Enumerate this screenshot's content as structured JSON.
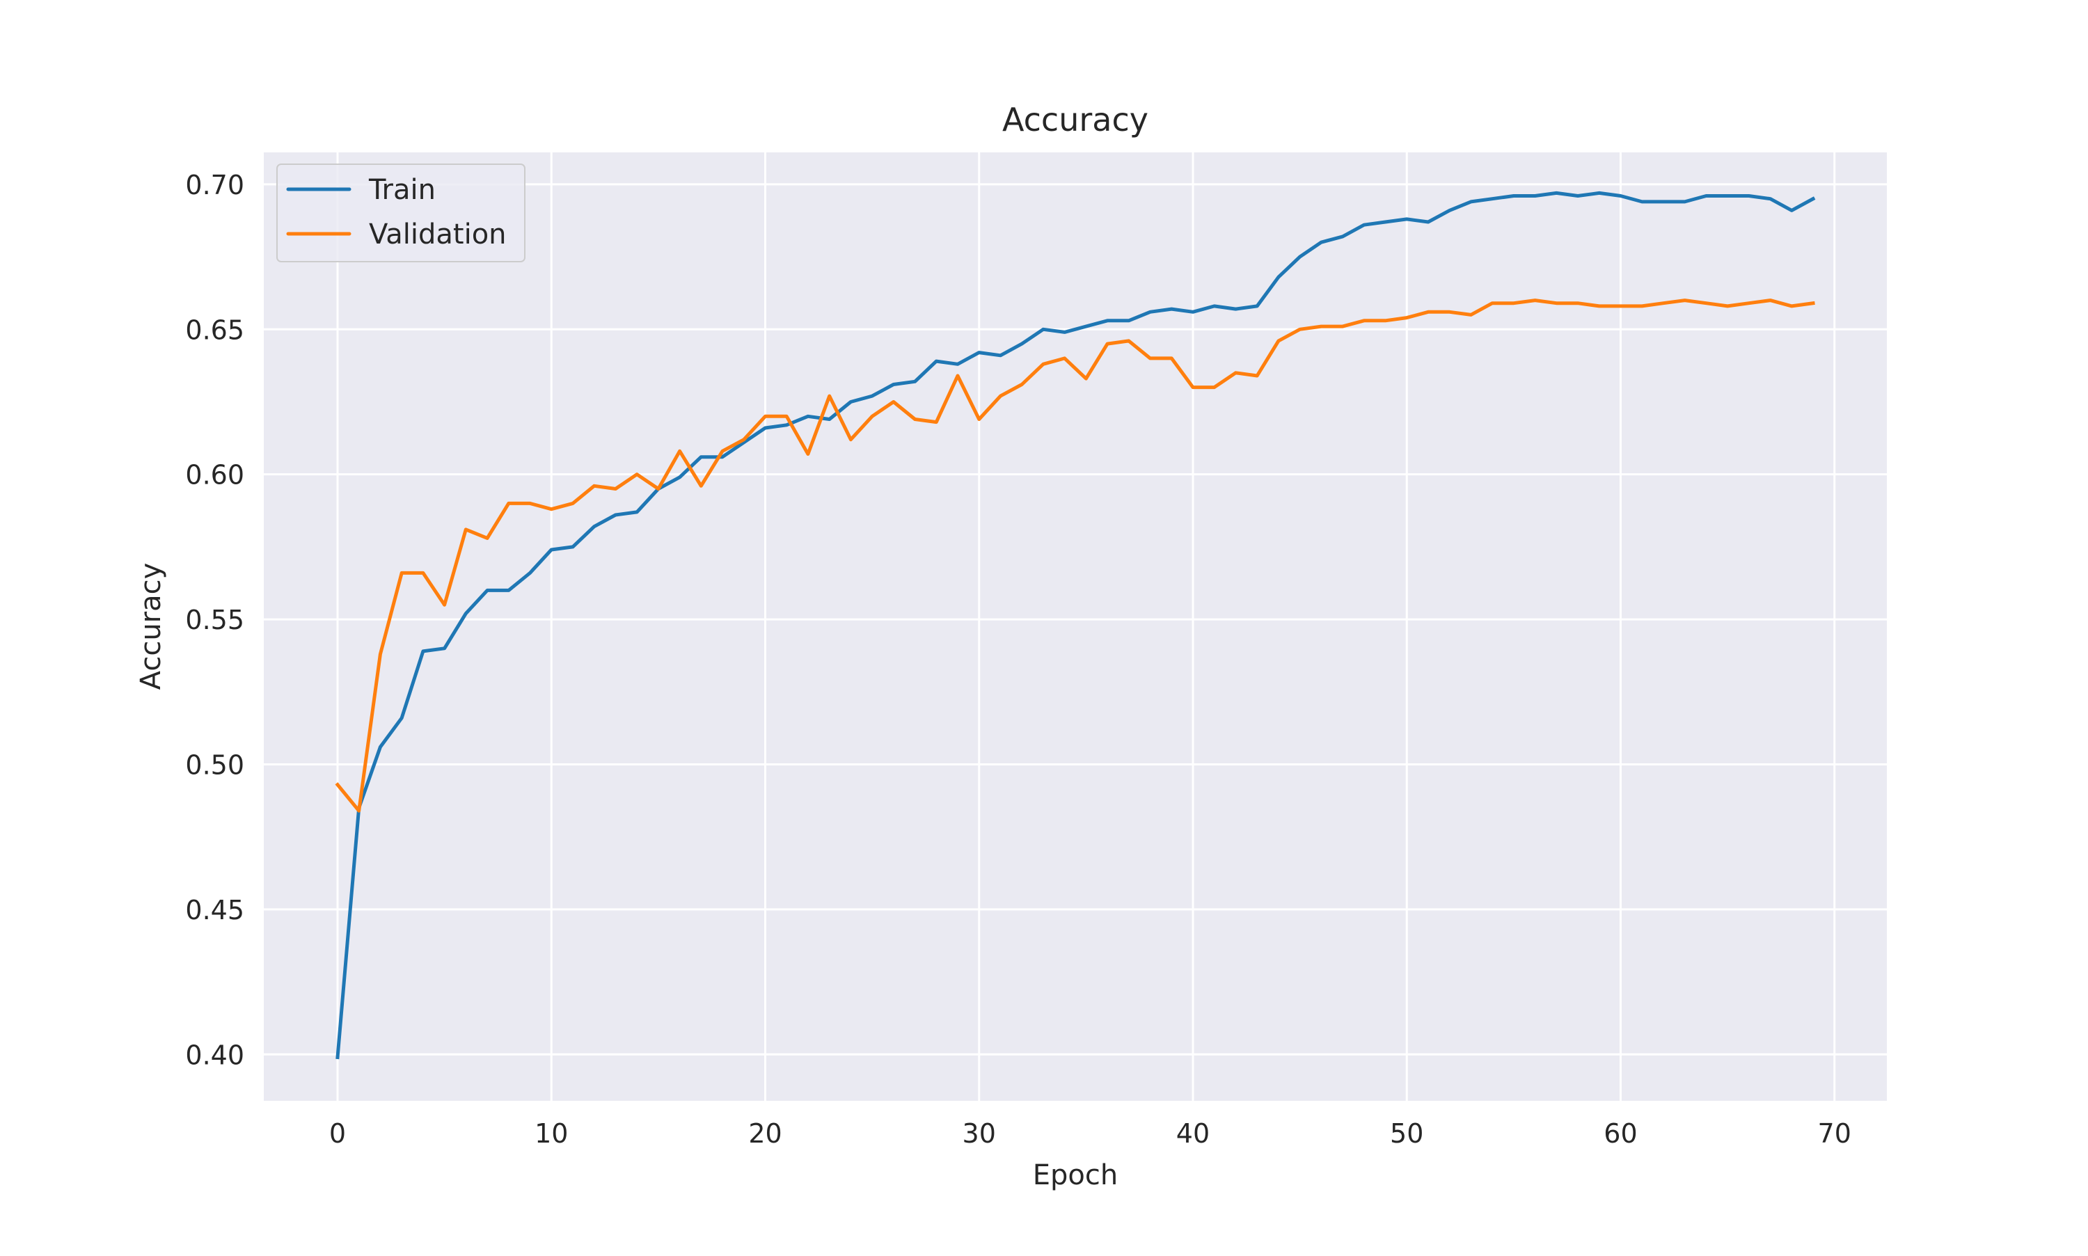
{
  "chart_data": {
    "type": "line",
    "title": "Accuracy",
    "xlabel": "Epoch",
    "ylabel": "Accuracy",
    "xlim": [
      -3.45,
      72.45
    ],
    "ylim": [
      0.384,
      0.711
    ],
    "xticks": [
      0,
      10,
      20,
      30,
      40,
      50,
      60,
      70
    ],
    "yticks": [
      0.4,
      0.45,
      0.5,
      0.55,
      0.6,
      0.65,
      0.7
    ],
    "ytick_labels": [
      "0.40",
      "0.45",
      "0.50",
      "0.55",
      "0.60",
      "0.65",
      "0.70"
    ],
    "grid": true,
    "legend_position": "top-left",
    "background": "#eaeaf2",
    "series": [
      {
        "name": "Train",
        "color": "#1f77b4",
        "x": [
          0,
          1,
          2,
          3,
          4,
          5,
          6,
          7,
          8,
          9,
          10,
          11,
          12,
          13,
          14,
          15,
          16,
          17,
          18,
          19,
          20,
          21,
          22,
          23,
          24,
          25,
          26,
          27,
          28,
          29,
          30,
          31,
          32,
          33,
          34,
          35,
          36,
          37,
          38,
          39,
          40,
          41,
          42,
          43,
          44,
          45,
          46,
          47,
          48,
          49,
          50,
          51,
          52,
          53,
          54,
          55,
          56,
          57,
          58,
          59,
          60,
          61,
          62,
          63,
          64,
          65,
          66,
          67,
          68,
          69
        ],
        "values": [
          0.399,
          0.485,
          0.506,
          0.516,
          0.539,
          0.54,
          0.552,
          0.56,
          0.56,
          0.566,
          0.574,
          0.575,
          0.582,
          0.586,
          0.587,
          0.595,
          0.599,
          0.606,
          0.606,
          0.611,
          0.616,
          0.617,
          0.62,
          0.619,
          0.625,
          0.627,
          0.631,
          0.632,
          0.639,
          0.638,
          0.642,
          0.641,
          0.645,
          0.65,
          0.649,
          0.651,
          0.653,
          0.653,
          0.656,
          0.657,
          0.656,
          0.658,
          0.657,
          0.658,
          0.668,
          0.675,
          0.68,
          0.682,
          0.686,
          0.687,
          0.688,
          0.687,
          0.691,
          0.694,
          0.695,
          0.696,
          0.696,
          0.697,
          0.696,
          0.697,
          0.696,
          0.694,
          0.694,
          0.694,
          0.696,
          0.696,
          0.696,
          0.695,
          0.691,
          0.695
        ]
      },
      {
        "name": "Validation",
        "color": "#ff7f0e",
        "x": [
          0,
          1,
          2,
          3,
          4,
          5,
          6,
          7,
          8,
          9,
          10,
          11,
          12,
          13,
          14,
          15,
          16,
          17,
          18,
          19,
          20,
          21,
          22,
          23,
          24,
          25,
          26,
          27,
          28,
          29,
          30,
          31,
          32,
          33,
          34,
          35,
          36,
          37,
          38,
          39,
          40,
          41,
          42,
          43,
          44,
          45,
          46,
          47,
          48,
          49,
          50,
          51,
          52,
          53,
          54,
          55,
          56,
          57,
          58,
          59,
          60,
          61,
          62,
          63,
          64,
          65,
          66,
          67,
          68,
          69
        ],
        "values": [
          0.493,
          0.484,
          0.538,
          0.566,
          0.566,
          0.555,
          0.581,
          0.578,
          0.59,
          0.59,
          0.588,
          0.59,
          0.596,
          0.595,
          0.6,
          0.595,
          0.608,
          0.596,
          0.608,
          0.612,
          0.62,
          0.62,
          0.607,
          0.627,
          0.612,
          0.62,
          0.625,
          0.619,
          0.618,
          0.634,
          0.619,
          0.627,
          0.631,
          0.638,
          0.64,
          0.633,
          0.645,
          0.646,
          0.64,
          0.64,
          0.63,
          0.63,
          0.635,
          0.634,
          0.646,
          0.65,
          0.651,
          0.651,
          0.653,
          0.653,
          0.654,
          0.656,
          0.656,
          0.655,
          0.659,
          0.659,
          0.66,
          0.659,
          0.659,
          0.658,
          0.658,
          0.658,
          0.659,
          0.66,
          0.659,
          0.658,
          0.659,
          0.66,
          0.658,
          0.659
        ]
      }
    ]
  }
}
